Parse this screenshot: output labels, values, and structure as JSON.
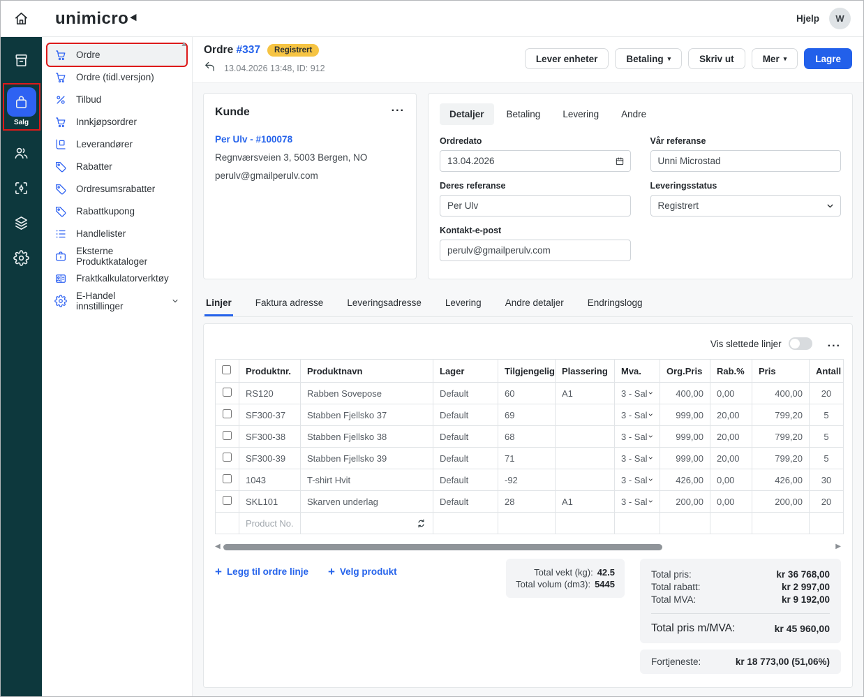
{
  "colors": {
    "accent": "#2563eb",
    "rail_bg": "#0d383d",
    "badge_bg": "#f6c443",
    "annotation_red": "#dd1a1a"
  },
  "topbar": {
    "logo": "unimicro",
    "help_label": "Hjelp",
    "avatar_initial": "W"
  },
  "rail": {
    "items": [
      {
        "icon": "archive",
        "name": "pos"
      },
      {
        "icon": "bag",
        "name": "salg",
        "label": "Salg",
        "active": true,
        "annotated": true
      },
      {
        "icon": "people",
        "name": "contacts"
      },
      {
        "icon": "hub",
        "name": "integrations"
      },
      {
        "icon": "layers",
        "name": "products"
      },
      {
        "icon": "gear",
        "name": "settings"
      }
    ]
  },
  "menu": {
    "items": [
      {
        "icon": "cart",
        "label": "Ordre",
        "active": true,
        "annotated": true
      },
      {
        "icon": "cart",
        "label": "Ordre (tidl.versjon)"
      },
      {
        "icon": "percent",
        "label": "Tilbud"
      },
      {
        "icon": "cart",
        "label": "Innkjøpsordrer"
      },
      {
        "icon": "supplier",
        "label": "Leverandører"
      },
      {
        "icon": "tag",
        "label": "Rabatter"
      },
      {
        "icon": "tag",
        "label": "Ordresumsrabatter"
      },
      {
        "icon": "tag",
        "label": "Rabattkupong"
      },
      {
        "icon": "list",
        "label": "Handlelister"
      },
      {
        "icon": "briefcase",
        "label": "Eksterne Produktkataloger"
      },
      {
        "icon": "idcard",
        "label": "Fraktkalkulatorverktøy"
      },
      {
        "icon": "gear",
        "label": "E-Handel innstillinger",
        "chevron": true
      }
    ]
  },
  "header": {
    "title": "Ordre",
    "number": "#337",
    "badge": "Registrert",
    "meta": "13.04.2026 13:48, ID: 912",
    "buttons": [
      {
        "label": "Lever enheter"
      },
      {
        "label": "Betaling",
        "dropdown": true
      },
      {
        "label": "Skriv ut"
      },
      {
        "label": "Mer",
        "dropdown": true
      },
      {
        "label": "Lagre",
        "primary": true
      }
    ]
  },
  "customer": {
    "title": "Kunde",
    "kebab": "...",
    "name_link": "Per Ulv - #100078",
    "address": "Regnværsveien 3, 5003 Bergen, NO",
    "email": "perulv@gmailperulv.com"
  },
  "details": {
    "tabs": [
      {
        "label": "Detaljer",
        "active": true
      },
      {
        "label": "Betaling"
      },
      {
        "label": "Levering"
      },
      {
        "label": "Andre"
      }
    ],
    "fields": {
      "ordredato": {
        "label": "Ordredato",
        "value": "13.04.2026"
      },
      "var_referanse": {
        "label": "Vår referanse",
        "value": "Unni Microstad"
      },
      "deres_referanse": {
        "label": "Deres referanse",
        "value": "Per Ulv"
      },
      "leveringsstatus": {
        "label": "Leveringsstatus",
        "value": "Registrert"
      },
      "kontakt_epost": {
        "label": "Kontakt-e-post",
        "value": "perulv@gmailperulv.com"
      }
    }
  },
  "line_tabs": [
    {
      "label": "Linjer",
      "active": true
    },
    {
      "label": "Faktura adresse"
    },
    {
      "label": "Leveringsadresse"
    },
    {
      "label": "Levering"
    },
    {
      "label": "Andre detaljer"
    },
    {
      "label": "Endringslogg"
    }
  ],
  "lines": {
    "show_deleted_label": "Vis slettede linjer",
    "toggle_on": false,
    "kebab": "...",
    "table": {
      "columns": [
        "Produktnr.",
        "Produktnavn",
        "Lager",
        "Tilgjengelig",
        "Plassering",
        "Mva.",
        "Org.Pris",
        "Rab.%",
        "Pris",
        "Antall"
      ],
      "rows": [
        {
          "nr": "RS120",
          "navn": "Rabben Sovepose",
          "lager": "Default",
          "tilgjengelig": "60",
          "plassering": "A1",
          "mva": "3 - Sal",
          "orgpris": "400,00",
          "rab": "0,00",
          "pris": "400,00",
          "antall": "20"
        },
        {
          "nr": "SF300-37",
          "navn": "Stabben Fjellsko 37",
          "lager": "Default",
          "tilgjengelig": "69",
          "plassering": "",
          "mva": "3 - Sal",
          "orgpris": "999,00",
          "rab": "20,00",
          "pris": "799,20",
          "antall": "5"
        },
        {
          "nr": "SF300-38",
          "navn": "Stabben Fjellsko 38",
          "lager": "Default",
          "tilgjengelig": "68",
          "plassering": "",
          "mva": "3 - Sal",
          "orgpris": "999,00",
          "rab": "20,00",
          "pris": "799,20",
          "antall": "5"
        },
        {
          "nr": "SF300-39",
          "navn": "Stabben Fjellsko 39",
          "lager": "Default",
          "tilgjengelig": "71",
          "plassering": "",
          "mva": "3 - Sal",
          "orgpris": "999,00",
          "rab": "20,00",
          "pris": "799,20",
          "antall": "5"
        },
        {
          "nr": "1043",
          "navn": "T-shirt Hvit",
          "lager": "Default",
          "tilgjengelig": "-92",
          "plassering": "",
          "mva": "3 - Sal",
          "orgpris": "426,00",
          "rab": "0,00",
          "pris": "426,00",
          "antall": "30"
        },
        {
          "nr": "SKL101",
          "navn": "Skarven underlag",
          "lager": "Default",
          "tilgjengelig": "28",
          "plassering": "A1",
          "mva": "3 - Sal",
          "orgpris": "200,00",
          "rab": "0,00",
          "pris": "200,00",
          "antall": "20"
        }
      ],
      "new_row_placeholder": "Product No."
    },
    "add_line_label": "Legg til ordre linje",
    "choose_product_label": "Velg produkt",
    "weight": [
      {
        "label": "Total vekt (kg):",
        "value": "42.5"
      },
      {
        "label": "Total volum (dm3):",
        "value": "5445"
      }
    ],
    "totals": {
      "rows": [
        {
          "label": "Total pris:",
          "value": "kr 36 768,00"
        },
        {
          "label": "Total rabatt:",
          "value": "kr 2 997,00"
        },
        {
          "label": "Total MVA:",
          "value": "kr 9 192,00"
        }
      ],
      "grand": {
        "label": "Total pris m/MVA:",
        "value": "kr 45 960,00"
      },
      "profit": {
        "label": "Fortjeneste:",
        "value": "kr 18 773,00 (51,06%)"
      }
    }
  }
}
